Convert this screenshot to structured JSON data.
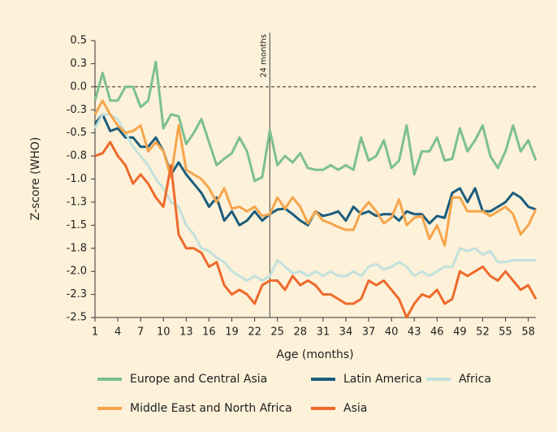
{
  "chart_data": {
    "type": "line",
    "x_label": "Age (months)",
    "y_label": "Z-score (WHO)",
    "x": [
      1,
      2,
      3,
      4,
      5,
      6,
      7,
      8,
      9,
      10,
      11,
      12,
      13,
      14,
      15,
      16,
      17,
      18,
      19,
      20,
      21,
      22,
      23,
      24,
      25,
      26,
      27,
      28,
      29,
      30,
      31,
      32,
      33,
      34,
      35,
      36,
      37,
      38,
      39,
      40,
      41,
      42,
      43,
      44,
      45,
      46,
      47,
      48,
      49,
      50,
      51,
      52,
      53,
      54,
      55,
      56,
      57,
      58,
      59
    ],
    "xlim": [
      1,
      59
    ],
    "xticks": [
      1,
      4,
      7,
      10,
      13,
      16,
      19,
      22,
      25,
      28,
      31,
      34,
      37,
      40,
      43,
      46,
      49,
      52,
      55,
      58
    ],
    "ylim": [
      -2.5,
      0.5
    ],
    "yticks": [
      0.5,
      {
        "value": 0.25,
        "label": "0.3"
      },
      {
        "value": 0,
        "label": "0.0"
      },
      {
        "value": -0.25,
        "label": "-0.3"
      },
      -0.5,
      {
        "value": -0.75,
        "label": "-0.8"
      },
      {
        "value": -1,
        "label": "-1.0"
      },
      {
        "value": -1.25,
        "label": "-1.3"
      },
      -1.5,
      {
        "value": -1.75,
        "label": "-1.8"
      },
      {
        "value": -2,
        "label": "-2.0"
      },
      {
        "value": -2.25,
        "label": "-2.3"
      },
      -2.5
    ],
    "reference_lines": {
      "y": 0,
      "style": "dashed"
    },
    "annotations": [
      {
        "text": "24 months",
        "x": 24
      }
    ],
    "legend": "bottom",
    "series": [
      {
        "name": "Europe and Central Asia",
        "color": "#7cc08f",
        "values": [
          -0.15,
          0.15,
          -0.15,
          -0.15,
          0.0,
          0.0,
          -0.22,
          -0.15,
          0.27,
          -0.45,
          -0.3,
          -0.32,
          -0.62,
          -0.5,
          -0.35,
          -0.6,
          -0.85,
          -0.78,
          -0.72,
          -0.55,
          -0.7,
          -1.02,
          -0.98,
          -0.47,
          -0.85,
          -0.75,
          -0.82,
          -0.72,
          -0.88,
          -0.9,
          -0.9,
          -0.85,
          -0.9,
          -0.85,
          -0.9,
          -0.55,
          -0.8,
          -0.75,
          -0.58,
          -0.88,
          -0.8,
          -0.42,
          -0.95,
          -0.7,
          -0.7,
          -0.55,
          -0.8,
          -0.78,
          -0.45,
          -0.7,
          -0.58,
          -0.42,
          -0.75,
          -0.88,
          -0.7,
          -0.42,
          -0.7,
          -0.58,
          -0.8
        ]
      },
      {
        "name": "Latin America",
        "color": "#1b5d7d",
        "values": [
          -0.4,
          -0.3,
          -0.48,
          -0.45,
          -0.55,
          -0.55,
          -0.65,
          -0.65,
          -0.55,
          -0.7,
          -0.95,
          -0.82,
          -0.95,
          -1.05,
          -1.15,
          -1.3,
          -1.2,
          -1.45,
          -1.35,
          -1.5,
          -1.45,
          -1.35,
          -1.45,
          -1.38,
          -1.33,
          -1.32,
          -1.38,
          -1.45,
          -1.5,
          -1.35,
          -1.4,
          -1.38,
          -1.35,
          -1.45,
          -1.3,
          -1.38,
          -1.35,
          -1.4,
          -1.38,
          -1.38,
          -1.45,
          -1.35,
          -1.38,
          -1.38,
          -1.48,
          -1.4,
          -1.42,
          -1.15,
          -1.1,
          -1.25,
          -1.1,
          -1.35,
          -1.35,
          -1.3,
          -1.25,
          -1.15,
          -1.2,
          -1.3,
          -1.33
        ]
      },
      {
        "name": "Africa",
        "color": "#c2e1dc",
        "values": [
          -0.45,
          -0.3,
          -0.3,
          -0.35,
          -0.5,
          -0.65,
          -0.75,
          -0.85,
          -1.0,
          -1.1,
          -1.25,
          -1.3,
          -1.5,
          -1.6,
          -1.75,
          -1.78,
          -1.85,
          -1.9,
          -2.0,
          -2.05,
          -2.1,
          -2.05,
          -2.1,
          -2.05,
          -1.88,
          -1.95,
          -2.02,
          -2.0,
          -2.05,
          -2.0,
          -2.05,
          -2.0,
          -2.05,
          -2.05,
          -2.0,
          -2.05,
          -1.95,
          -1.92,
          -1.98,
          -1.95,
          -1.9,
          -1.95,
          -2.05,
          -2.0,
          -2.05,
          -2.0,
          -1.95,
          -1.95,
          -1.75,
          -1.78,
          -1.75,
          -1.82,
          -1.78,
          -1.9,
          -1.9,
          -1.88,
          -1.88,
          -1.88,
          -1.88
        ]
      },
      {
        "name": "Middle East and North Africa",
        "color": "#f5a54c",
        "values": [
          -0.3,
          -0.15,
          -0.3,
          -0.42,
          -0.5,
          -0.48,
          -0.42,
          -0.7,
          -0.6,
          -0.7,
          -0.98,
          -0.42,
          -0.9,
          -0.95,
          -1.0,
          -1.1,
          -1.25,
          -1.1,
          -1.32,
          -1.3,
          -1.35,
          -1.3,
          -1.4,
          -1.38,
          -1.2,
          -1.32,
          -1.2,
          -1.3,
          -1.48,
          -1.35,
          -1.45,
          -1.48,
          -1.52,
          -1.55,
          -1.55,
          -1.35,
          -1.25,
          -1.35,
          -1.48,
          -1.42,
          -1.22,
          -1.5,
          -1.42,
          -1.4,
          -1.65,
          -1.5,
          -1.72,
          -1.2,
          -1.2,
          -1.35,
          -1.35,
          -1.35,
          -1.4,
          -1.35,
          -1.3,
          -1.38,
          -1.6,
          -1.5,
          -1.33
        ]
      },
      {
        "name": "Asia",
        "color": "#ee6a2c",
        "values": [
          -0.75,
          -0.72,
          -0.6,
          -0.75,
          -0.85,
          -1.05,
          -0.95,
          -1.05,
          -1.2,
          -1.3,
          -0.85,
          -1.6,
          -1.75,
          -1.75,
          -1.8,
          -1.95,
          -1.9,
          -2.15,
          -2.25,
          -2.2,
          -2.25,
          -2.35,
          -2.15,
          -2.1,
          -2.1,
          -2.2,
          -2.05,
          -2.15,
          -2.1,
          -2.15,
          -2.25,
          -2.25,
          -2.3,
          -2.35,
          -2.35,
          -2.3,
          -2.1,
          -2.15,
          -2.1,
          -2.2,
          -2.3,
          -2.5,
          -2.35,
          -2.25,
          -2.28,
          -2.2,
          -2.35,
          -2.3,
          -2.0,
          -2.05,
          -2.0,
          -1.95,
          -2.05,
          -2.1,
          -2.0,
          -2.1,
          -2.2,
          -2.15,
          -2.3
        ]
      }
    ]
  }
}
